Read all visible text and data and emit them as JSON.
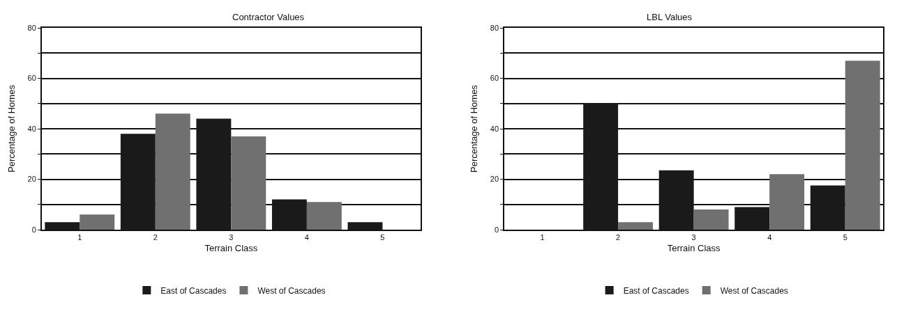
{
  "chart_data": [
    {
      "type": "bar",
      "title": "Contractor Values",
      "xlabel": "Terrain Class",
      "ylabel": "Percentage of Homes",
      "categories": [
        "1",
        "2",
        "3",
        "4",
        "5"
      ],
      "series": [
        {
          "name": "East of Cascades",
          "color": "#1a1a1a",
          "values": [
            3,
            38,
            44,
            12,
            3
          ]
        },
        {
          "name": "West of Cascades",
          "color": "#707070",
          "values": [
            6,
            46,
            37,
            11,
            0
          ]
        }
      ],
      "ylim": [
        0,
        80
      ],
      "yticks": [
        0,
        {
          "value": 10,
          "label": null
        },
        20,
        {
          "value": 30,
          "label": null
        },
        40,
        {
          "value": 50,
          "label": null
        },
        60,
        {
          "value": 70,
          "label": null
        },
        80
      ],
      "grid": "y",
      "legend": "bottom"
    },
    {
      "type": "bar",
      "title": "LBL Values",
      "xlabel": "Terrain Class",
      "ylabel": "Percentage of Homes",
      "categories": [
        "1",
        "2",
        "3",
        "4",
        "5"
      ],
      "series": [
        {
          "name": "East of Cascades",
          "color": "#1a1a1a",
          "values": [
            0,
            50,
            23.5,
            9,
            17.5
          ]
        },
        {
          "name": "West of Cascades",
          "color": "#707070",
          "values": [
            0,
            3,
            8,
            22,
            67
          ]
        }
      ],
      "ylim": [
        0,
        80
      ],
      "yticks": [
        0,
        {
          "value": 10,
          "label": null
        },
        20,
        {
          "value": 30,
          "label": null
        },
        40,
        {
          "value": 50,
          "label": null
        },
        60,
        {
          "value": 70,
          "label": null
        },
        80
      ],
      "grid": "y",
      "legend": "bottom"
    }
  ]
}
